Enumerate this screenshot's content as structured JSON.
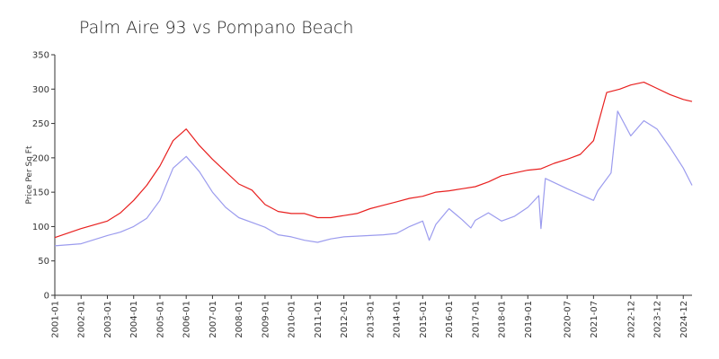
{
  "chart_data": {
    "type": "line",
    "title": "Palm Aire 93 vs Pompano Beach",
    "xlabel": "",
    "ylabel": "Price Per Sq Ft",
    "ylim": [
      0,
      350
    ],
    "yticks": [
      0,
      50,
      100,
      150,
      200,
      250,
      300,
      350
    ],
    "xlim": [
      "2001-01",
      "2025-04"
    ],
    "xtick_labels": [
      "2001-01",
      "2002-01",
      "2003-01",
      "2004-01",
      "2005-01",
      "2006-01",
      "2007-01",
      "2008-01",
      "2009-01",
      "2010-01",
      "2011-01",
      "2012-01",
      "2013-01",
      "2014-01",
      "2015-01",
      "2016-01",
      "2017-01",
      "2018-01",
      "2019-01",
      "2020-07",
      "2021-07",
      "2022-12",
      "2023-12",
      "2024-12"
    ],
    "grid": false,
    "legend": "none",
    "series": [
      {
        "color": "#e8201f",
        "x": [
          "2001-01",
          "2002-01",
          "2003-01",
          "2003-07",
          "2004-01",
          "2004-07",
          "2005-01",
          "2005-07",
          "2006-01",
          "2006-07",
          "2007-01",
          "2007-07",
          "2008-01",
          "2008-07",
          "2009-01",
          "2009-07",
          "2010-01",
          "2010-07",
          "2011-01",
          "2011-07",
          "2012-01",
          "2012-07",
          "2013-01",
          "2013-07",
          "2014-01",
          "2014-07",
          "2015-01",
          "2015-07",
          "2016-01",
          "2016-07",
          "2017-01",
          "2017-07",
          "2018-01",
          "2018-07",
          "2019-01",
          "2019-07",
          "2020-01",
          "2020-07",
          "2021-01",
          "2021-07",
          "2022-01",
          "2022-07",
          "2022-12",
          "2023-06",
          "2023-12",
          "2024-06",
          "2024-12",
          "2025-04"
        ],
        "values": [
          84,
          97,
          108,
          120,
          138,
          160,
          188,
          225,
          242,
          218,
          198,
          180,
          162,
          153,
          132,
          122,
          119,
          119,
          113,
          113,
          116,
          119,
          126,
          131,
          136,
          141,
          144,
          150,
          152,
          155,
          158,
          165,
          174,
          178,
          182,
          184,
          192,
          198,
          205,
          225,
          295,
          300,
          306,
          310,
          301,
          292,
          285,
          282
        ]
      },
      {
        "color": "#9b9bee",
        "x": [
          "2001-01",
          "2002-01",
          "2003-01",
          "2003-07",
          "2004-01",
          "2004-07",
          "2005-01",
          "2005-07",
          "2006-01",
          "2006-07",
          "2007-01",
          "2007-07",
          "2008-01",
          "2008-07",
          "2009-01",
          "2009-07",
          "2010-01",
          "2010-07",
          "2011-01",
          "2011-07",
          "2012-01",
          "2012-07",
          "2013-01",
          "2013-07",
          "2014-01",
          "2014-07",
          "2015-01",
          "2015-04",
          "2015-07",
          "2016-01",
          "2016-07",
          "2016-11",
          "2017-01",
          "2017-07",
          "2018-01",
          "2018-07",
          "2019-01",
          "2019-06",
          "2019-07",
          "2019-09",
          "2020-07",
          "2021-07",
          "2021-09",
          "2022-03",
          "2022-06",
          "2022-12",
          "2023-06",
          "2023-12",
          "2024-06",
          "2024-12",
          "2025-04"
        ],
        "values": [
          72,
          75,
          87,
          92,
          100,
          112,
          138,
          185,
          202,
          180,
          150,
          128,
          113,
          106,
          99,
          88,
          85,
          80,
          77,
          82,
          85,
          86,
          87,
          88,
          90,
          100,
          108,
          80,
          103,
          126,
          110,
          98,
          109,
          120,
          108,
          115,
          128,
          145,
          97,
          170,
          155,
          138,
          152,
          178,
          268,
          232,
          254,
          242,
          215,
          185,
          160
        ]
      }
    ]
  }
}
